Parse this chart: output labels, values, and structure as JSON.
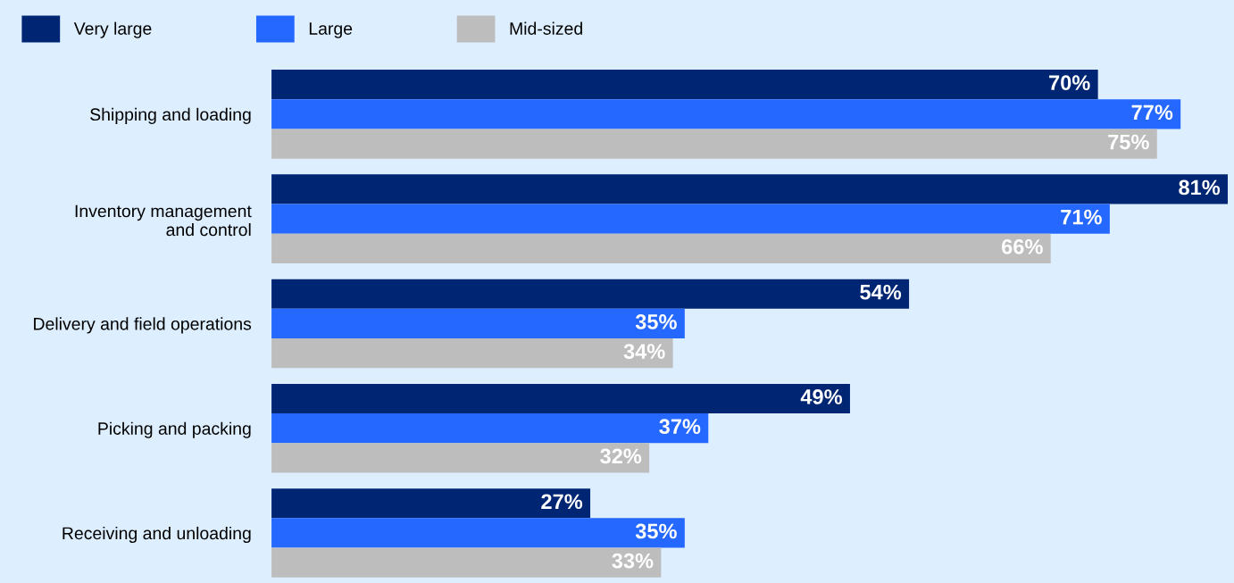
{
  "chart_data": {
    "type": "bar",
    "orientation": "horizontal",
    "categories": [
      "Shipping and loading",
      "Inventory management\nand control",
      "Delivery and field operations",
      "Picking and packing",
      "Receiving and unloading"
    ],
    "series": [
      {
        "name": "Very large",
        "color": "#002673",
        "values": [
          70,
          81,
          54,
          49,
          27
        ],
        "value_labels": [
          "70%",
          "81%",
          "54%",
          "49%",
          "27%"
        ]
      },
      {
        "name": "Large",
        "color": "#2468ff",
        "values": [
          77,
          71,
          35,
          37,
          35
        ],
        "value_labels": [
          "77%",
          "71%",
          "35%",
          "37%",
          "35%"
        ]
      },
      {
        "name": "Mid-sized",
        "color": "#bdbdbd",
        "values": [
          75,
          66,
          34,
          32,
          33
        ],
        "value_labels": [
          "75%",
          "66%",
          "34%",
          "32%",
          "33%"
        ]
      }
    ],
    "legend": "top left",
    "grid": false
  }
}
